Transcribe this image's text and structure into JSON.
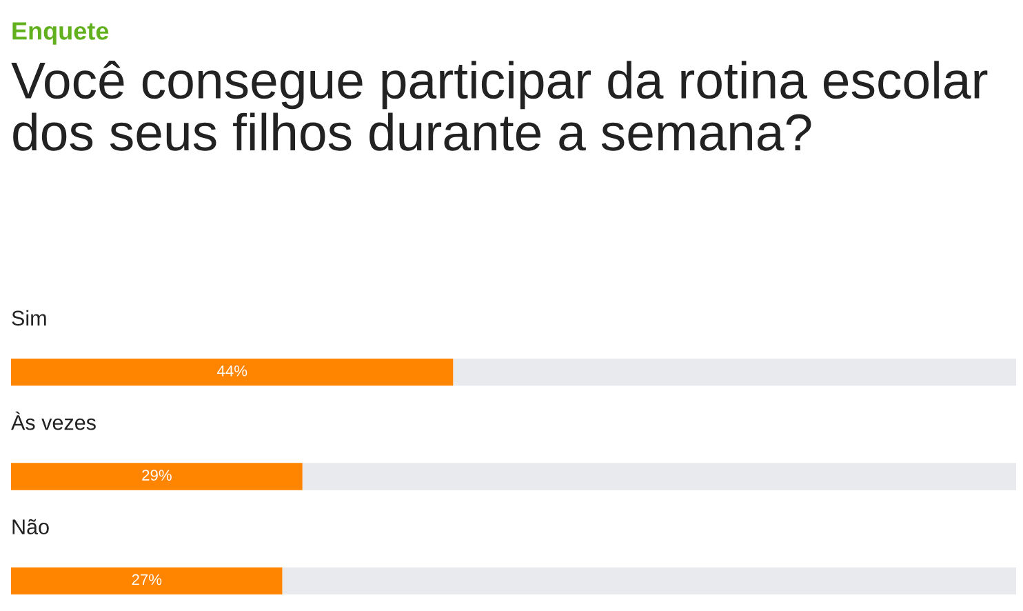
{
  "chart_data": {
    "type": "bar",
    "orientation": "horizontal",
    "stacked": true,
    "subtitle": "Enquete",
    "title": "Você consegue participar da rotina escolar dos seus filhos durante a semana?",
    "categories": [
      "Sim",
      "Às vezes",
      "Não"
    ],
    "series": [
      {
        "color": "#ff8400",
        "values": [
          44,
          29,
          27
        ],
        "value_labels": [
          "44%",
          "29%",
          "27%"
        ]
      },
      {
        "color": "#e8eaed",
        "values": [
          56,
          71,
          73
        ]
      }
    ],
    "xlim": [
      0,
      100
    ]
  }
}
